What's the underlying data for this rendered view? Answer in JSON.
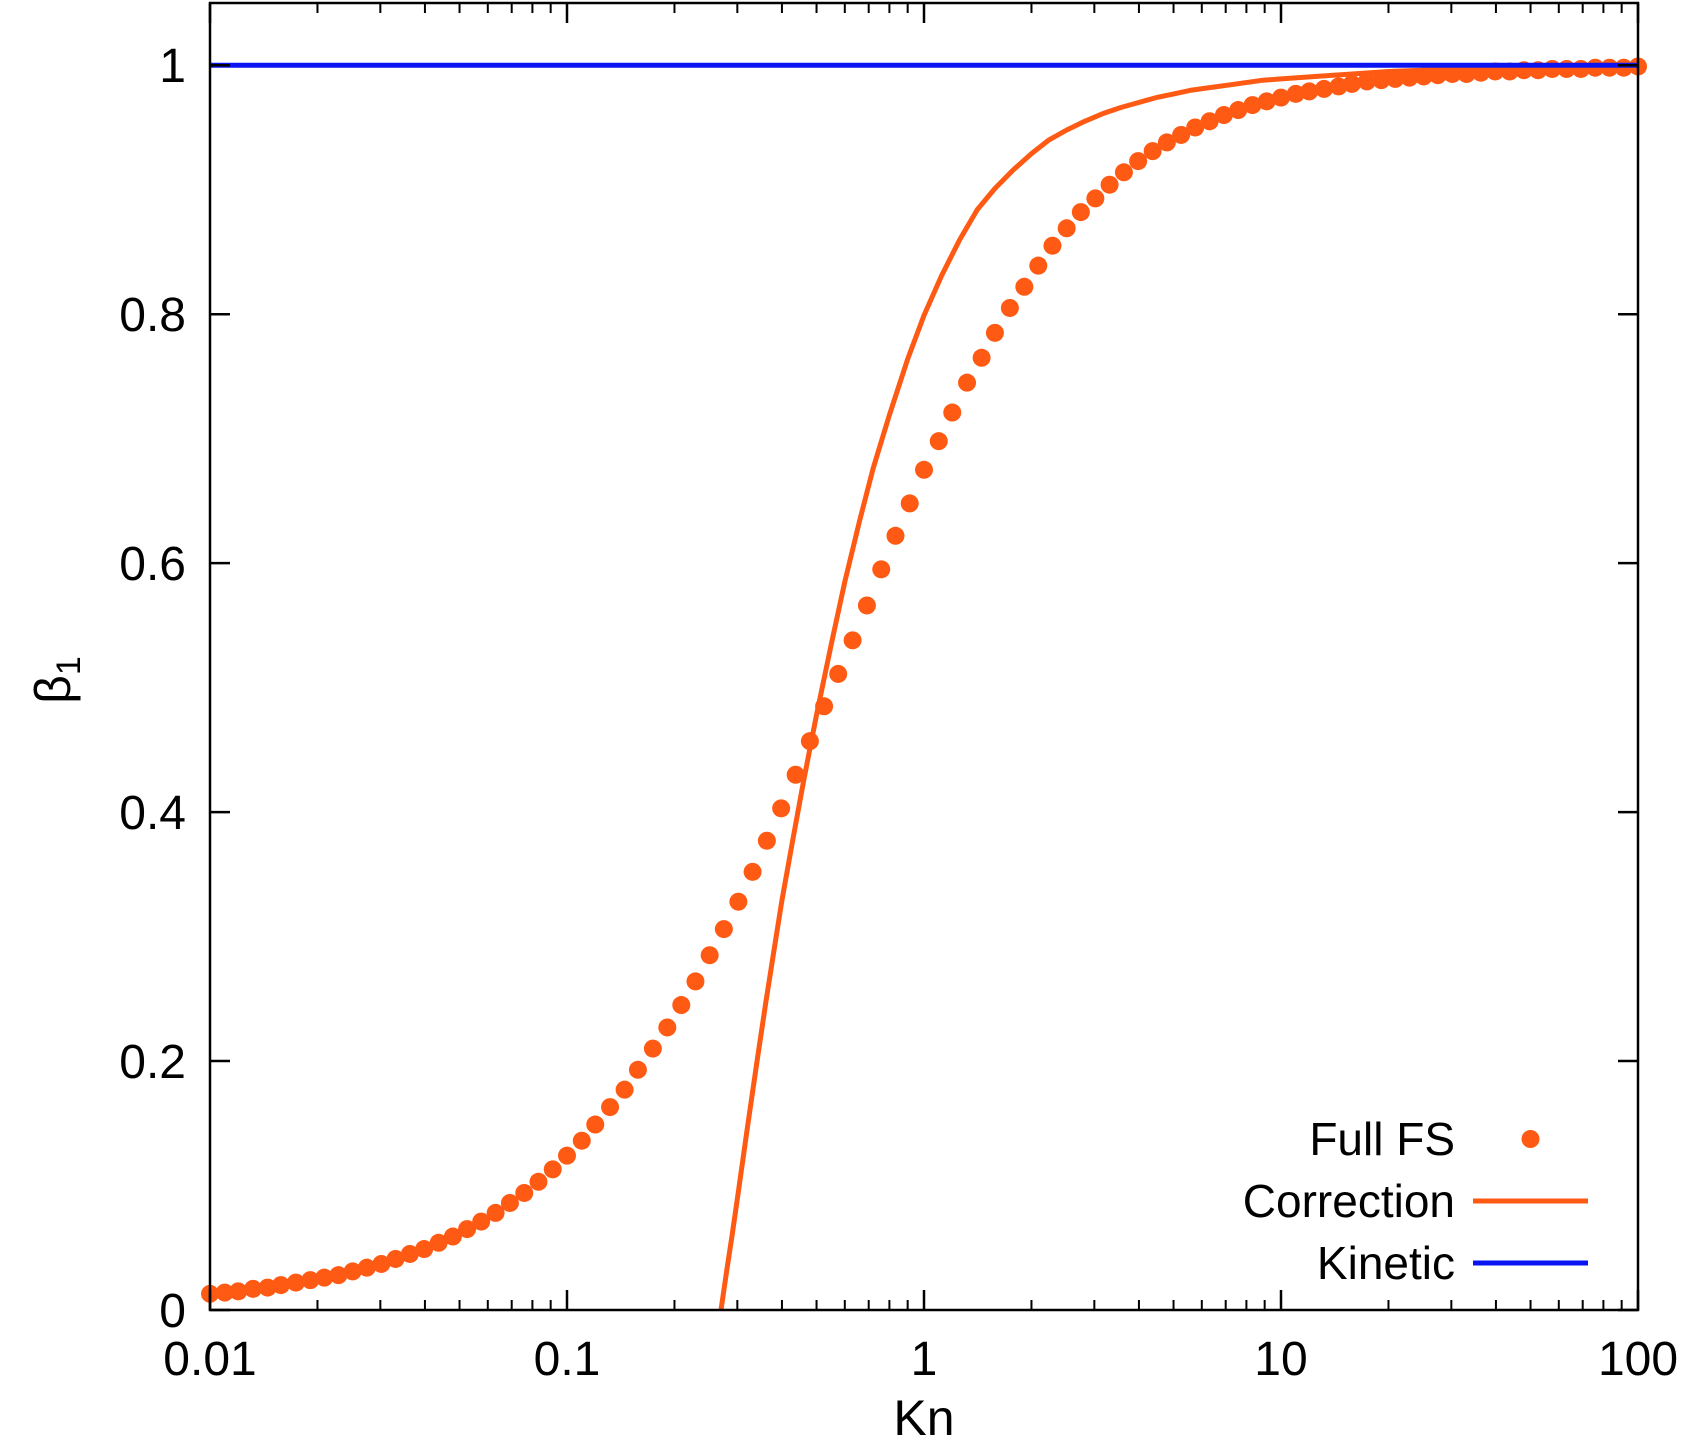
{
  "chart_data": {
    "type": "line",
    "xlabel": "Kn",
    "ylabel_symbol": "β",
    "ylabel_subscript": "1",
    "xscale": "log",
    "xlim": [
      0.01,
      100
    ],
    "ylim": [
      0,
      1.05
    ],
    "xticks": [
      {
        "value": 0.01,
        "label": "0.01"
      },
      {
        "value": 0.1,
        "label": "0.1"
      },
      {
        "value": 1,
        "label": "1"
      },
      {
        "value": 10,
        "label": "10"
      },
      {
        "value": 100,
        "label": "100"
      }
    ],
    "yticks": [
      {
        "value": 0,
        "label": "0"
      },
      {
        "value": 0.2,
        "label": "0.2"
      },
      {
        "value": 0.4,
        "label": "0.4"
      },
      {
        "value": 0.6,
        "label": "0.6"
      },
      {
        "value": 0.8,
        "label": "0.8"
      },
      {
        "value": 1,
        "label": "1"
      }
    ],
    "grid": false,
    "legend_position": "bottom-right",
    "series": [
      {
        "name": "Full FS",
        "style": "points",
        "color": "#ff5a14",
        "x": [
          0.01,
          0.011,
          0.012,
          0.0132,
          0.0145,
          0.0158,
          0.0174,
          0.0191,
          0.0209,
          0.0229,
          0.0251,
          0.0275,
          0.0302,
          0.0331,
          0.0363,
          0.0398,
          0.0437,
          0.0479,
          0.0525,
          0.0575,
          0.0631,
          0.0692,
          0.0759,
          0.0832,
          0.0912,
          0.1,
          0.11,
          0.12,
          0.132,
          0.145,
          0.158,
          0.174,
          0.191,
          0.209,
          0.229,
          0.251,
          0.275,
          0.302,
          0.331,
          0.363,
          0.398,
          0.437,
          0.479,
          0.525,
          0.575,
          0.631,
          0.692,
          0.759,
          0.832,
          0.912,
          1.0,
          1.1,
          1.2,
          1.32,
          1.45,
          1.58,
          1.74,
          1.91,
          2.09,
          2.29,
          2.51,
          2.75,
          3.02,
          3.31,
          3.63,
          3.98,
          4.37,
          4.79,
          5.25,
          5.75,
          6.31,
          6.92,
          7.59,
          8.32,
          9.12,
          10,
          11.0,
          12.0,
          13.2,
          14.5,
          15.8,
          17.4,
          19.1,
          20.9,
          22.9,
          25.1,
          27.5,
          30.2,
          33.1,
          36.3,
          39.8,
          43.7,
          47.9,
          52.5,
          57.5,
          63.1,
          69.2,
          75.9,
          83.2,
          91.2,
          100
        ],
        "y": [
          0.013,
          0.014,
          0.015,
          0.017,
          0.018,
          0.02,
          0.022,
          0.024,
          0.026,
          0.028,
          0.031,
          0.034,
          0.037,
          0.041,
          0.045,
          0.049,
          0.054,
          0.059,
          0.065,
          0.071,
          0.078,
          0.086,
          0.094,
          0.103,
          0.113,
          0.124,
          0.136,
          0.149,
          0.163,
          0.177,
          0.193,
          0.21,
          0.227,
          0.245,
          0.264,
          0.285,
          0.306,
          0.328,
          0.352,
          0.377,
          0.403,
          0.43,
          0.457,
          0.485,
          0.511,
          0.538,
          0.566,
          0.595,
          0.622,
          0.648,
          0.675,
          0.698,
          0.721,
          0.745,
          0.765,
          0.785,
          0.805,
          0.822,
          0.839,
          0.855,
          0.869,
          0.882,
          0.893,
          0.904,
          0.914,
          0.923,
          0.931,
          0.938,
          0.944,
          0.95,
          0.955,
          0.96,
          0.964,
          0.968,
          0.971,
          0.974,
          0.977,
          0.979,
          0.981,
          0.983,
          0.985,
          0.987,
          0.988,
          0.989,
          0.99,
          0.991,
          0.992,
          0.993,
          0.993,
          0.994,
          0.995,
          0.995,
          0.996,
          0.996,
          0.997,
          0.997,
          0.997,
          0.998,
          0.998,
          0.998,
          0.999
        ]
      },
      {
        "name": "Correction",
        "style": "line",
        "color": "#ff5a14",
        "x": [
          0.27,
          0.28,
          0.29,
          0.3,
          0.32,
          0.34,
          0.36,
          0.38,
          0.4,
          0.43,
          0.46,
          0.5,
          0.55,
          0.6,
          0.66,
          0.72,
          0.8,
          0.9,
          1.0,
          1.12,
          1.26,
          1.41,
          1.58,
          1.78,
          2.0,
          2.24,
          2.51,
          2.82,
          3.16,
          3.55,
          3.98,
          4.47,
          5.01,
          5.62,
          6.31,
          7.08,
          7.94,
          8.91,
          10,
          12.6,
          15.8,
          20.0,
          25.1,
          31.6,
          39.8,
          50.1,
          63.1,
          79.4,
          100
        ],
        "y": [
          0.0,
          0.031,
          0.06,
          0.089,
          0.146,
          0.198,
          0.246,
          0.289,
          0.329,
          0.379,
          0.425,
          0.478,
          0.535,
          0.585,
          0.634,
          0.676,
          0.719,
          0.764,
          0.799,
          0.831,
          0.86,
          0.884,
          0.901,
          0.916,
          0.929,
          0.94,
          0.948,
          0.955,
          0.961,
          0.966,
          0.97,
          0.974,
          0.977,
          0.98,
          0.982,
          0.984,
          0.986,
          0.988,
          0.989,
          0.991,
          0.993,
          0.995,
          0.996,
          0.997,
          0.997,
          0.998,
          0.998,
          0.999,
          0.999
        ]
      },
      {
        "name": "Kinetic",
        "style": "line",
        "color": "#0a14f0",
        "x": [
          0.01,
          100
        ],
        "y": [
          1.0,
          1.0
        ]
      }
    ]
  }
}
